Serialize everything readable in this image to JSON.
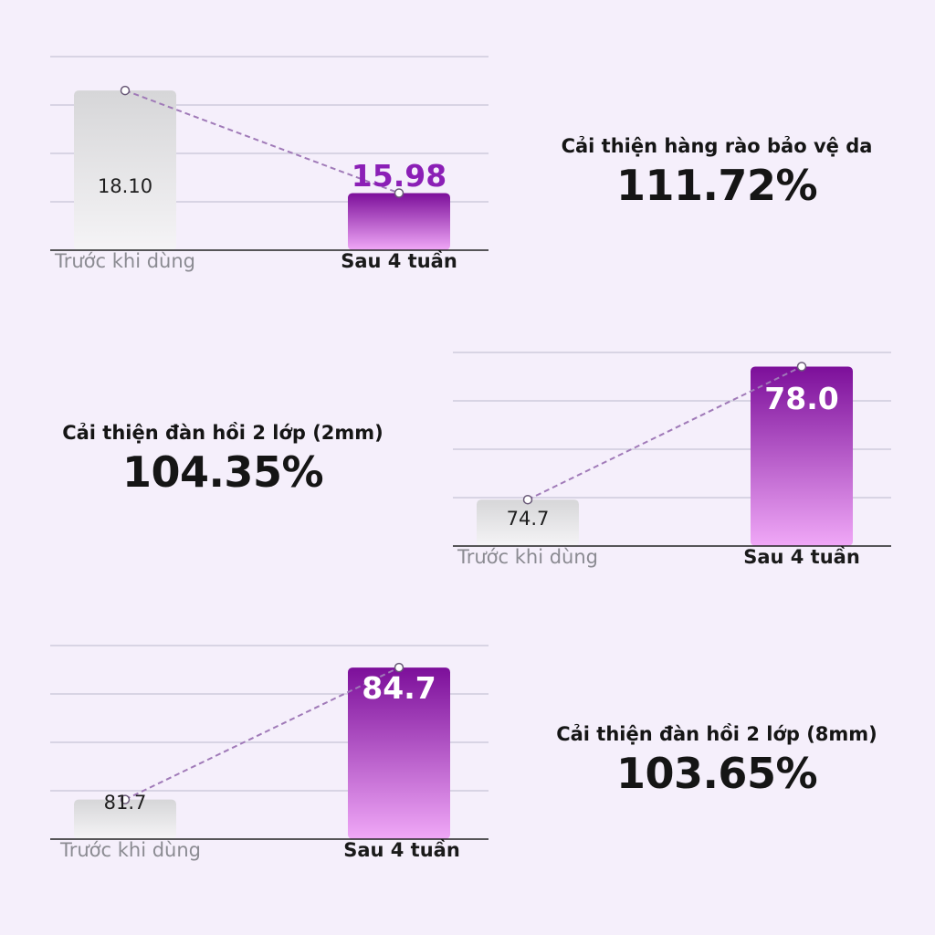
{
  "chart_data": [
    {
      "type": "bar",
      "categories": [
        "Trước khi dùng",
        "Sau 4 tuần"
      ],
      "values": [
        18.1,
        15.98
      ],
      "value_labels": [
        "18.10",
        "15.98"
      ],
      "ylim": [
        14.8,
        18.8
      ],
      "trend_line": "dashed",
      "grid": true,
      "stat_title": "Cải thiện hàng rào bảo vệ da",
      "stat_value": "111.72%"
    },
    {
      "type": "bar",
      "categories": [
        "Trước khi dùng",
        "Sau 4 tuần"
      ],
      "values": [
        74.7,
        78.0
      ],
      "value_labels": [
        "74.7",
        "78.0"
      ],
      "ylim": [
        73.55,
        78.35
      ],
      "trend_line": "dashed",
      "grid": true,
      "stat_title": "Cải thiện đàn hồi 2 lớp (2mm)",
      "stat_value": "104.35%"
    },
    {
      "type": "bar",
      "categories": [
        "Trước khi dùng",
        "Sau 4 tuần"
      ],
      "values": [
        81.7,
        84.7
      ],
      "value_labels": [
        "81.7",
        "84.7"
      ],
      "ylim": [
        80.8,
        85.2
      ],
      "trend_line": "dashed",
      "grid": true,
      "stat_title": "Cải thiện đàn hồi 2 lớp (8mm)",
      "stat_value": "103.65%"
    }
  ],
  "colors": {
    "background": "#f5effb",
    "bar_before_top": "#d6d6d8",
    "bar_before_bottom": "#f5f4f6",
    "bar_after_top": "#7c0f9a",
    "bar_after_bottom": "#f0a8f7",
    "accent_text": "#8b1fb6",
    "grid": "#c8c4d6",
    "axis": "#222222",
    "trend": "#a07ab8"
  }
}
